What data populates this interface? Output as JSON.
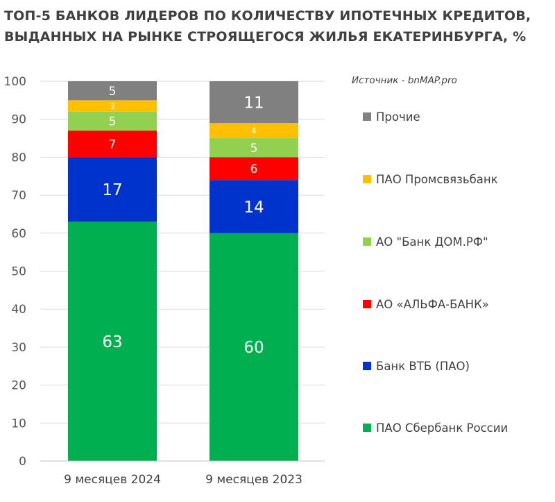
{
  "chart_data": {
    "type": "bar",
    "stacked": true,
    "title_lines": [
      "ТОП-5 БАНКОВ ЛИДЕРОВ ПО КОЛИЧЕСТВУ ИПОТЕЧНЫХ КРЕДИТОВ,",
      "ВЫДАННЫХ НА РЫНКЕ СТРОЯЩЕГОСЯ ЖИЛЬЯ ЕКАТЕРИНБУРГА, %"
    ],
    "source": "Источник - bnMAP.pro",
    "categories": [
      "9 месяцев 2024",
      "9 месяцев 2023"
    ],
    "ylim": [
      0,
      100
    ],
    "yticks": [
      0,
      10,
      20,
      30,
      40,
      50,
      60,
      70,
      80,
      90,
      100
    ],
    "grid": true,
    "legend_position": "right",
    "series": [
      {
        "name": "ПАО Сбербанк России",
        "color": "#00B050",
        "values": [
          63,
          60
        ]
      },
      {
        "name": "Банк ВТБ (ПАО)",
        "color": "#0033CC",
        "values": [
          17,
          14
        ]
      },
      {
        "name": "АО «АЛЬФА-БАНК»",
        "color": "#FF0000",
        "values": [
          7,
          6
        ]
      },
      {
        "name": "АО \"Банк ДОМ.РФ\"",
        "color": "#92D050",
        "values": [
          5,
          5
        ]
      },
      {
        "name": "ПАО Промсвязьбанк",
        "color": "#FFC000",
        "values": [
          3,
          4
        ]
      },
      {
        "name": "Прочие",
        "color": "#808080",
        "values": [
          5,
          11
        ]
      }
    ]
  }
}
